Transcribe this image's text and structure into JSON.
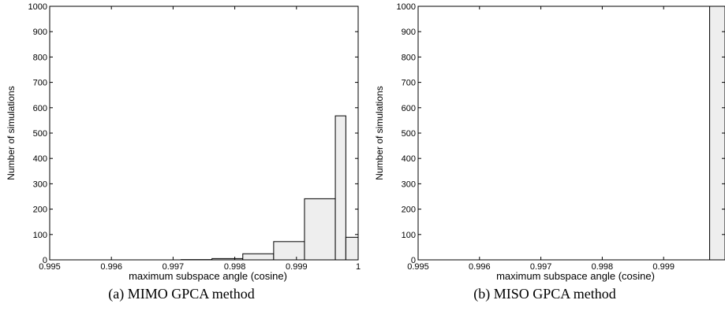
{
  "chart_data": [
    {
      "type": "bar",
      "caption": "(a) MIMO GPCA method",
      "xlabel": "maximum subspace angle (cosine)",
      "ylabel": "Number of simulations",
      "xlim": [
        0.995,
        1.0
      ],
      "ylim": [
        0,
        1000
      ],
      "xticks": [
        "0.995",
        "0.996",
        "0.997",
        "0.998",
        "0.999",
        "1"
      ],
      "yticks": [
        "0",
        "100",
        "200",
        "300",
        "400",
        "500",
        "600",
        "700",
        "800",
        "900",
        "1000"
      ],
      "bins": [
        {
          "x0": 0.99713,
          "x1": 0.99763,
          "value": 1
        },
        {
          "x0": 0.99763,
          "x1": 0.99813,
          "value": 5
        },
        {
          "x0": 0.99813,
          "x1": 0.99863,
          "value": 24
        },
        {
          "x0": 0.99863,
          "x1": 0.99913,
          "value": 72
        },
        {
          "x0": 0.99913,
          "x1": 0.99963,
          "value": 241
        },
        {
          "x0": 0.99963,
          "x1": 0.9998,
          "value": 568
        },
        {
          "x0": 0.9998,
          "x1": 1.0,
          "value": 89
        }
      ],
      "colors": {
        "bar_fill": "#eeeeee",
        "bar_stroke": "#000000"
      }
    },
    {
      "type": "bar",
      "caption": "(b) MISO GPCA method",
      "xlabel": "maximum subspace angle (cosine)",
      "ylabel": "Number of simulations",
      "xlim": [
        0.995,
        1.0
      ],
      "ylim": [
        0,
        1000
      ],
      "xticks": [
        "0.995",
        "0.996",
        "0.997",
        "0.998",
        "0.999"
      ],
      "yticks": [
        "0",
        "100",
        "200",
        "300",
        "400",
        "500",
        "600",
        "700",
        "800",
        "900",
        "1000"
      ],
      "bins": [
        {
          "x0": 0.99975,
          "x1": 1.0,
          "value": 1000
        }
      ],
      "colors": {
        "bar_fill": "#eeeeee",
        "bar_stroke": "#000000"
      }
    }
  ]
}
